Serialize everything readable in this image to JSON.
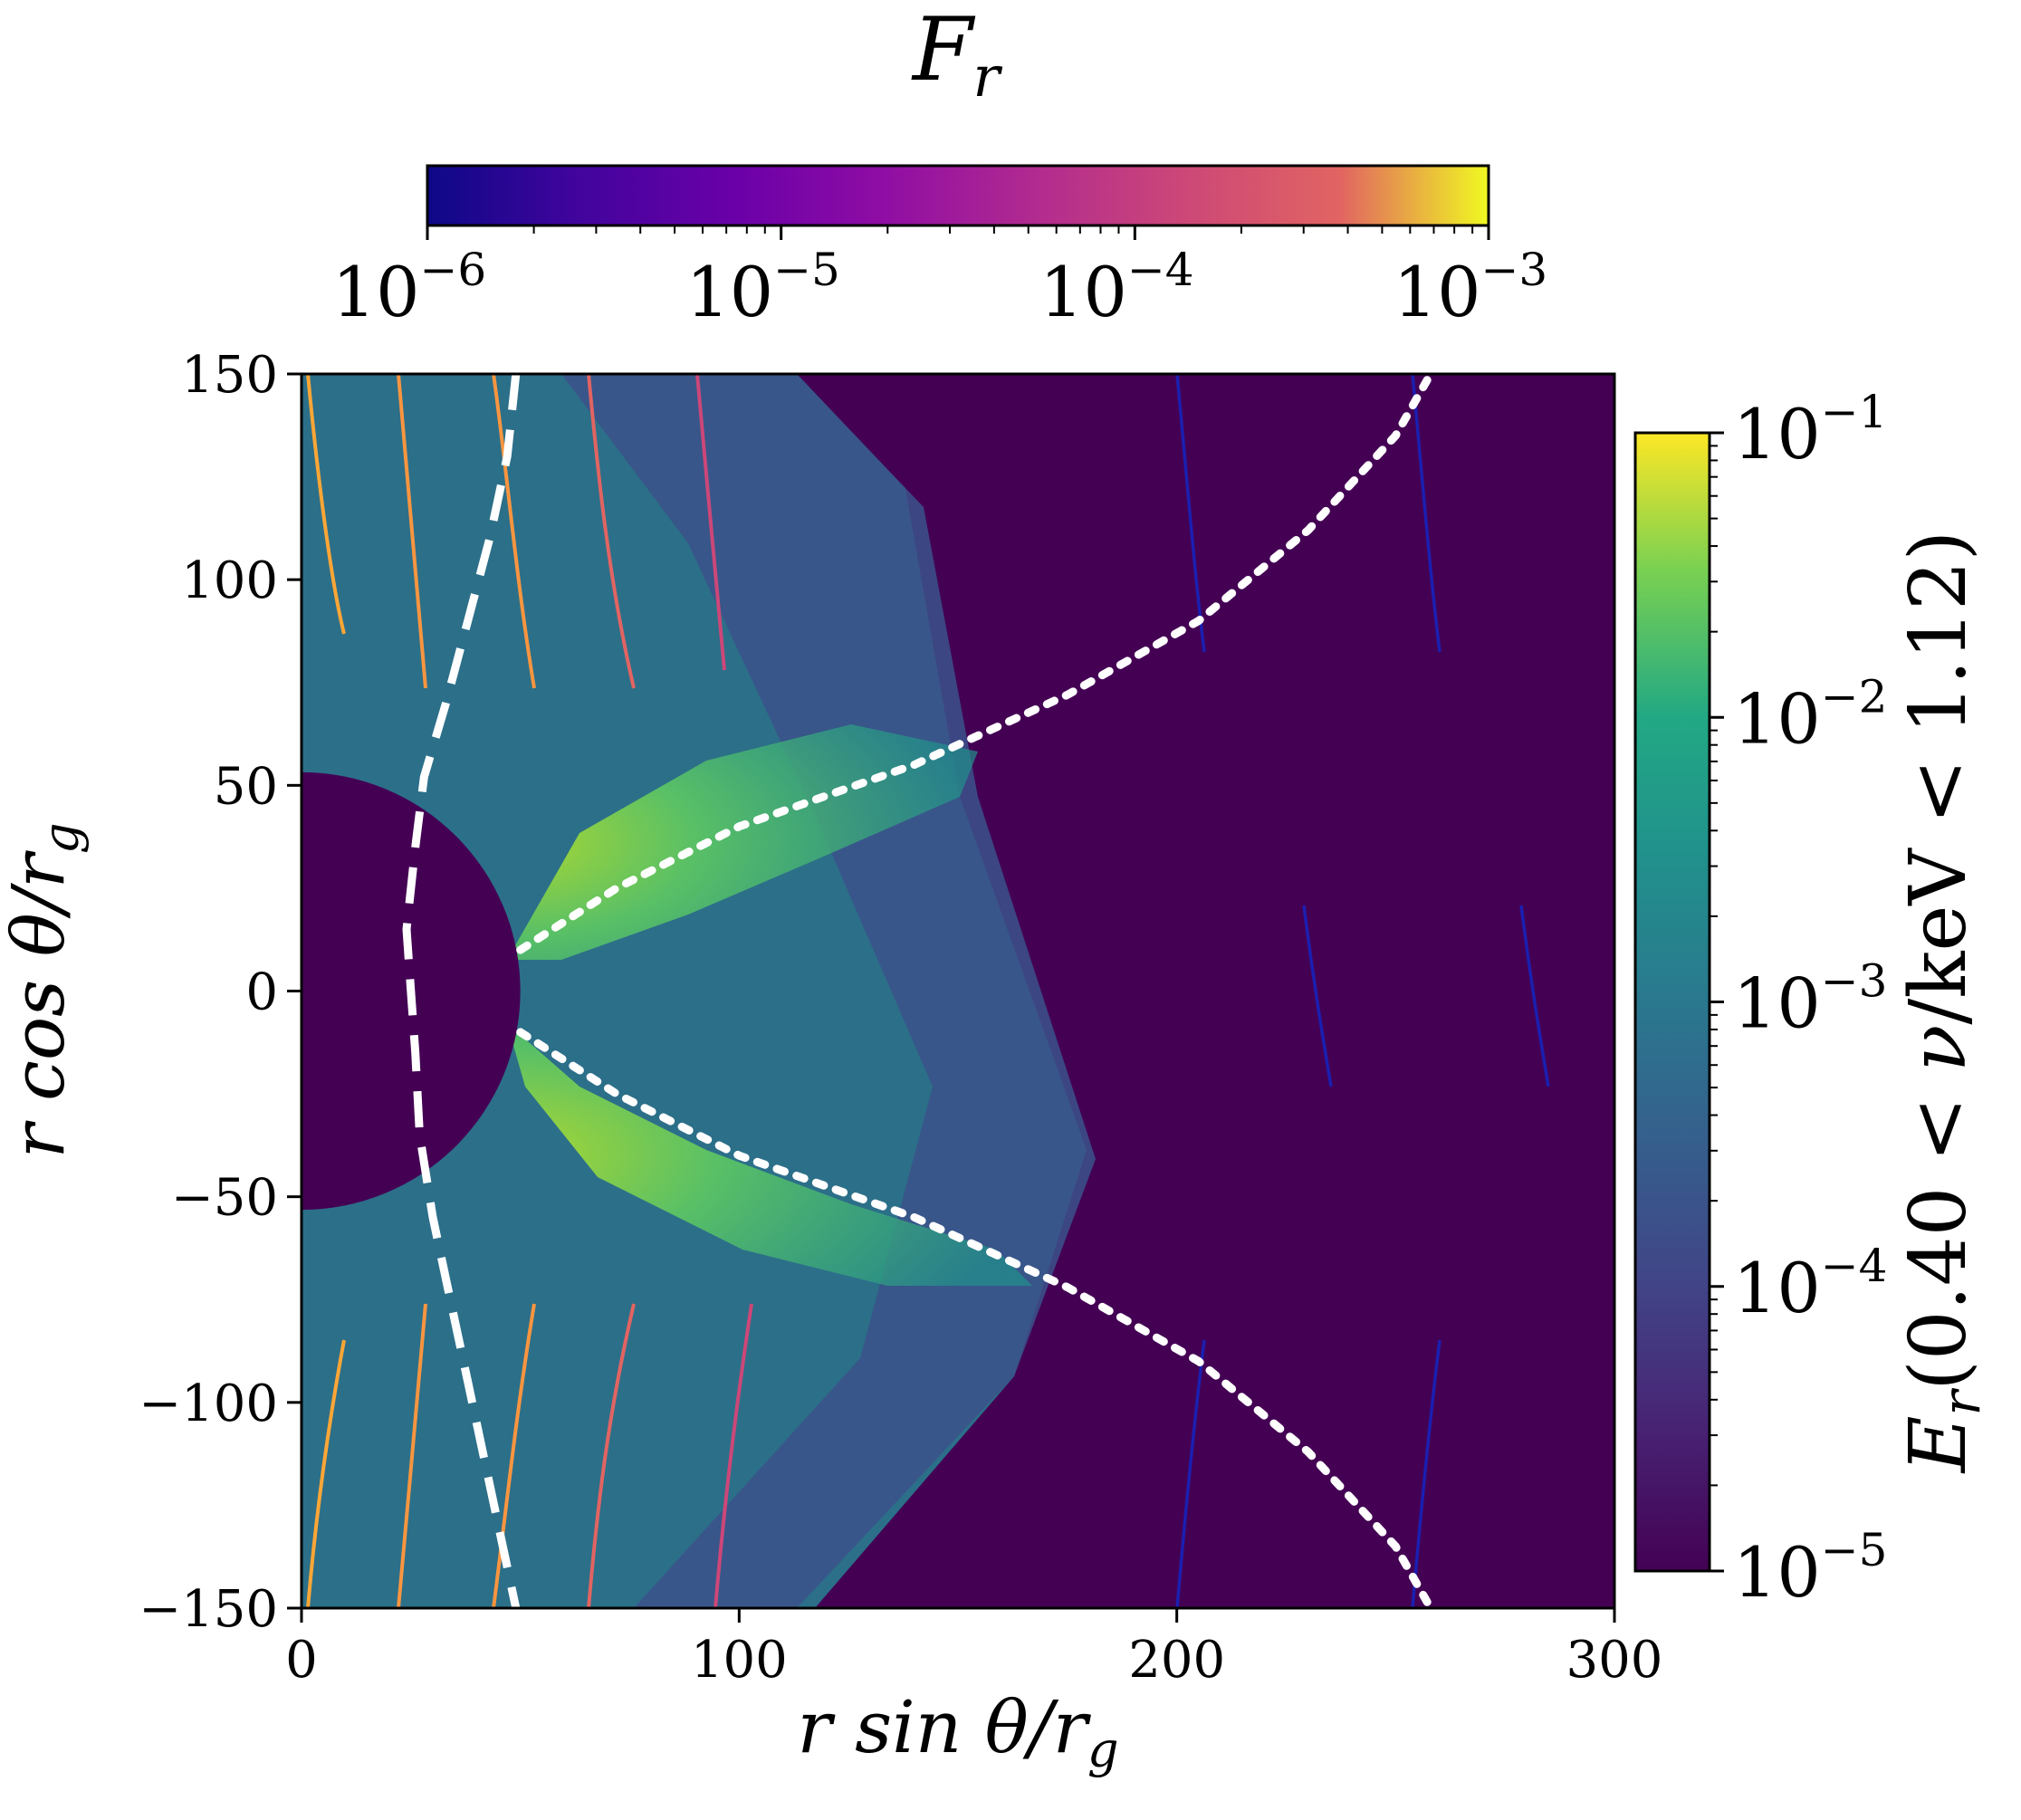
{
  "chart_data": {
    "type": "heatmap",
    "xlabel": "r sin θ/r_g",
    "ylabel": "r cos θ/r_g",
    "xlim": [
      0,
      300
    ],
    "ylim": [
      -150,
      150
    ],
    "xticks": [
      "0",
      "100",
      "200",
      "300"
    ],
    "yticks": [
      "150",
      "100",
      "50",
      "0",
      "−50",
      "−100",
      "−150"
    ],
    "x_tick_values": [
      0,
      100,
      200,
      300
    ],
    "y_tick_values": [
      150,
      100,
      50,
      0,
      -50,
      -100,
      -150
    ],
    "black_hole_radius": 50,
    "colorbar_vertical": {
      "label": "E_r(0.40 < ν/keV < 1.12)",
      "scale": "log",
      "range": [
        1e-05,
        0.1
      ],
      "tick_values": [
        1e-05,
        0.0001,
        0.001,
        0.01,
        0.1
      ],
      "ticks": [
        {
          "base": "10",
          "exp": "−5"
        },
        {
          "base": "10",
          "exp": "−4"
        },
        {
          "base": "10",
          "exp": "−3"
        },
        {
          "base": "10",
          "exp": "−2"
        },
        {
          "base": "10",
          "exp": "−1"
        }
      ],
      "colormap": "viridis"
    },
    "colorbar_horizontal": {
      "label": "F_r",
      "scale": "log",
      "range": [
        1e-06,
        0.001
      ],
      "tick_values": [
        1e-06,
        1e-05,
        0.0001,
        0.001
      ],
      "ticks": [
        {
          "base": "10",
          "exp": "−6"
        },
        {
          "base": "10",
          "exp": "−5"
        },
        {
          "base": "10",
          "exp": "−4"
        },
        {
          "base": "10",
          "exp": "−3"
        }
      ],
      "colormap": "plasma"
    },
    "dashed_contour": [
      [
        29,
        150
      ],
      [
        27,
        130
      ],
      [
        23,
        110
      ],
      [
        18,
        90
      ],
      [
        13,
        70
      ],
      [
        8,
        52
      ],
      [
        6,
        35
      ],
      [
        4,
        15
      ],
      [
        5,
        0
      ],
      [
        6,
        -15
      ],
      [
        7,
        -35
      ],
      [
        10,
        -55
      ],
      [
        14,
        -75
      ],
      [
        18,
        -95
      ],
      [
        22,
        -115
      ],
      [
        26,
        -135
      ],
      [
        29,
        -150
      ]
    ],
    "dotted_contour_upper": [
      [
        50,
        10
      ],
      [
        72,
        25
      ],
      [
        100,
        40
      ],
      [
        140,
        55
      ],
      [
        175,
        72
      ],
      [
        205,
        90
      ],
      [
        230,
        112
      ],
      [
        250,
        135
      ],
      [
        258,
        150
      ]
    ],
    "dotted_contour_lower": [
      [
        50,
        -10
      ],
      [
        72,
        -25
      ],
      [
        100,
        -40
      ],
      [
        140,
        -55
      ],
      [
        175,
        -72
      ],
      [
        205,
        -90
      ],
      [
        230,
        -112
      ],
      [
        250,
        -135
      ],
      [
        258,
        -150
      ]
    ]
  },
  "colors": {
    "background_field": "#440154",
    "black_hole": "#440154",
    "contour": "#ffffff"
  }
}
